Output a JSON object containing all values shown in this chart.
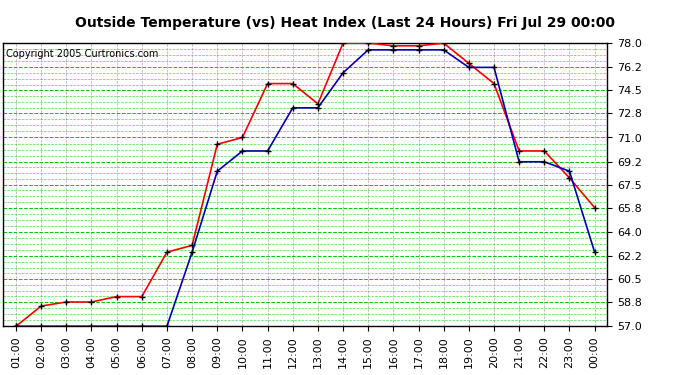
{
  "title": "Outside Temperature (vs) Heat Index (Last 24 Hours) Fri Jul 29 00:00",
  "copyright": "Copyright 2005 Curtronics.com",
  "x_labels": [
    "01:00",
    "02:00",
    "03:00",
    "04:00",
    "05:00",
    "06:00",
    "07:00",
    "08:00",
    "09:00",
    "10:00",
    "11:00",
    "12:00",
    "13:00",
    "14:00",
    "15:00",
    "16:00",
    "17:00",
    "18:00",
    "19:00",
    "20:00",
    "21:00",
    "22:00",
    "23:00",
    "00:00"
  ],
  "y_ticks": [
    57.0,
    58.8,
    60.5,
    62.2,
    64.0,
    65.8,
    67.5,
    69.2,
    71.0,
    72.8,
    74.5,
    76.2,
    78.0
  ],
  "y_min": 57.0,
  "y_max": 78.0,
  "outside_temp": [
    57.0,
    58.5,
    58.8,
    58.8,
    59.2,
    59.2,
    62.5,
    63.0,
    70.5,
    71.0,
    75.0,
    75.0,
    73.5,
    78.0,
    78.0,
    77.8,
    77.8,
    78.0,
    76.5,
    75.0,
    70.0,
    70.0,
    68.0,
    65.8
  ],
  "heat_index": [
    57.0,
    57.0,
    57.0,
    57.0,
    57.0,
    57.0,
    57.0,
    62.5,
    68.5,
    70.0,
    70.0,
    73.2,
    73.2,
    75.8,
    77.5,
    77.5,
    77.5,
    77.5,
    76.2,
    76.2,
    69.2,
    69.2,
    68.5,
    62.5
  ],
  "temp_color": "#ff0000",
  "heat_color": "#0000bb",
  "bg_color": "#ffffff",
  "plot_bg_color": "#ffffff",
  "grid_color_h": "#00cc00",
  "grid_color_v": "#888888",
  "title_bg": "#cccccc",
  "border_color": "#000000",
  "title_fontsize": 10,
  "copyright_fontsize": 7,
  "tick_fontsize": 8
}
